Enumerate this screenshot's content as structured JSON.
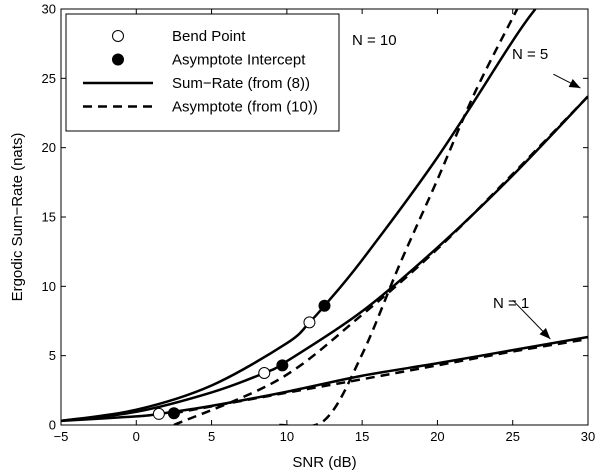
{
  "chart_data": {
    "type": "line",
    "title": "",
    "xlabel": "SNR (dB)",
    "ylabel": "Ergodic Sum−Rate (nats)",
    "xlim": [
      -5,
      30
    ],
    "ylim": [
      0,
      30
    ],
    "xticks": [
      -5,
      0,
      5,
      10,
      15,
      20,
      25,
      30
    ],
    "yticks": [
      0,
      5,
      10,
      15,
      20,
      25,
      30
    ],
    "grid": false,
    "legend_position": "top-left",
    "legend": [
      {
        "label": "Bend Point",
        "marker": "open-circle"
      },
      {
        "label": "Asymptote Intercept",
        "marker": "filled-circle"
      },
      {
        "label": "Sum−Rate (from (8))",
        "line": "solid"
      },
      {
        "label": "Asymptote (from (10))",
        "line": "dashed"
      }
    ],
    "series": [
      {
        "style": "solid",
        "x": [
          -5,
          0,
          1.5,
          5,
          10,
          15,
          20,
          25,
          30
        ],
        "y": [
          0.3,
          0.62,
          0.8,
          1.38,
          2.4,
          3.55,
          4.45,
          5.4,
          6.35
        ]
      },
      {
        "style": "dashed",
        "x": [
          2.5,
          10,
          15,
          20,
          25,
          30
        ],
        "y": [
          0.85,
          2.33,
          3.3,
          4.3,
          5.3,
          6.2
        ]
      },
      {
        "style": "solid",
        "x": [
          -5,
          0,
          5,
          8.5,
          10,
          15,
          20,
          25,
          30
        ],
        "y": [
          0.3,
          0.95,
          2.35,
          3.75,
          4.6,
          8.2,
          12.8,
          18.0,
          23.7
        ]
      },
      {
        "style": "dashed",
        "x": [
          2.5,
          9.5,
          15,
          20,
          25,
          30
        ],
        "y": [
          0,
          3.3,
          7.95,
          12.7,
          18.1,
          23.7
        ]
      },
      {
        "style": "solid",
        "x": [
          -5,
          0,
          5,
          10,
          11.5,
          12.5,
          15,
          20,
          25,
          26.5
        ],
        "y": [
          0.3,
          1.1,
          2.85,
          5.9,
          7.4,
          8.6,
          11.9,
          19.3,
          27.7,
          30
        ]
      },
      {
        "style": "dashed",
        "x": [
          9.5,
          12.5,
          15,
          17.5,
          20,
          22.5,
          25.3
        ],
        "y": [
          0,
          0.35,
          5.1,
          11.6,
          17.7,
          24.0,
          30
        ]
      }
    ],
    "bend_points": [
      {
        "x": 1.5,
        "y": 0.8
      },
      {
        "x": 8.5,
        "y": 3.75
      },
      {
        "x": 11.5,
        "y": 7.4
      }
    ],
    "asymptote_intercepts": [
      {
        "x": 2.5,
        "y": 0.85
      },
      {
        "x": 9.7,
        "y": 4.3
      },
      {
        "x": 12.5,
        "y": 8.6
      }
    ],
    "annotations": [
      {
        "text": "N = 10",
        "arrow_from": [
          9.5,
          24.3
        ],
        "arrow_to": [
          12.0,
          21.5
        ]
      },
      {
        "text": "N = 5",
        "arrow_from": [
          27.7,
          25.3
        ],
        "arrow_to": [
          29.5,
          24.3
        ]
      },
      {
        "text": "N = 1",
        "arrow_from": [
          25.0,
          9.0
        ],
        "arrow_to": [
          27.5,
          6.2
        ]
      }
    ]
  }
}
